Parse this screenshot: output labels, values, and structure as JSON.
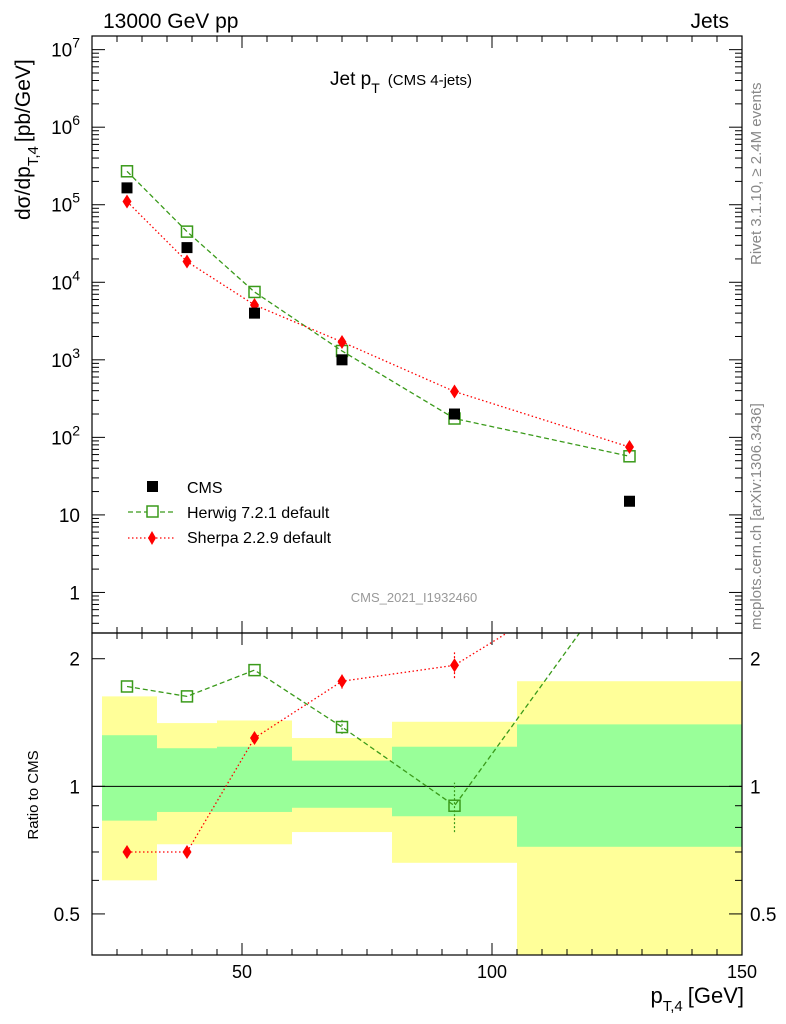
{
  "header": {
    "left": "13000 GeV pp",
    "right": "Jets"
  },
  "side_labels": {
    "rivet": "Rivet 3.1.10, ≥ 2.4M events",
    "mcplots": "mcplots.cern.ch [arXiv:1306.3436]"
  },
  "main_plot": {
    "title_main": "Jet p",
    "title_sub": "T",
    "title_note": "(CMS 4-jets)",
    "ylabel_main": "dσ/dp",
    "ylabel_sub": "T,4",
    "ylabel_unit": "[pb/GeV]",
    "watermark": "CMS_2021_I1932460"
  },
  "ratio_plot": {
    "ylabel": "Ratio to CMS"
  },
  "xlabel": {
    "main": "p",
    "sub": "T,4",
    "unit": "[GeV]"
  },
  "colors": {
    "cms": "#000000",
    "herwig": "#3a9a1a",
    "sherpa": "#ff0000",
    "band_inner": "#99ff99",
    "band_outer": "#ffff99"
  },
  "chart_data": [
    {
      "type": "scatter",
      "xlim": [
        20,
        150
      ],
      "ylim": [
        0.3,
        15000000
      ],
      "yscale": "log",
      "y_tick_labels": [
        "1",
        "10",
        "10^2",
        "10^3",
        "10^4",
        "10^5",
        "10^6",
        "10^7"
      ],
      "legend_placement": "bottom-left",
      "series": [
        {
          "name": "CMS",
          "x": [
            27,
            39,
            52.5,
            70,
            92.5,
            127.5
          ],
          "y": [
            165000,
            28000,
            4000,
            1000,
            200,
            15
          ]
        },
        {
          "name": "Herwig 7.2.1 default",
          "x": [
            27,
            39,
            52.5,
            70,
            92.5,
            127.5
          ],
          "y": [
            270000,
            45000,
            7500,
            1300,
            175,
            57
          ]
        },
        {
          "name": "Sherpa 2.2.9 default",
          "x": [
            27,
            39,
            52.5,
            70,
            92.5,
            127.5
          ],
          "y": [
            110000,
            18500,
            5100,
            1700,
            390,
            75
          ]
        }
      ]
    },
    {
      "type": "scatter",
      "xlim": [
        20,
        150
      ],
      "ylim": [
        0.4,
        2.3
      ],
      "yscale": "log",
      "x_tick_labels": [
        "50",
        "100",
        "150"
      ],
      "y_tick_labels": [
        "0.5",
        "1",
        "2"
      ],
      "bands": {
        "bins": [
          [
            22,
            33
          ],
          [
            33,
            45
          ],
          [
            45,
            60
          ],
          [
            60,
            80
          ],
          [
            80,
            105
          ],
          [
            105,
            150
          ]
        ],
        "inner": [
          [
            0.83,
            1.32
          ],
          [
            0.87,
            1.23
          ],
          [
            0.87,
            1.24
          ],
          [
            0.89,
            1.15
          ],
          [
            0.85,
            1.24
          ],
          [
            0.72,
            1.4
          ]
        ],
        "outer": [
          [
            0.6,
            1.63
          ],
          [
            0.73,
            1.41
          ],
          [
            0.73,
            1.43
          ],
          [
            0.78,
            1.3
          ],
          [
            0.66,
            1.42
          ],
          [
            0.4,
            1.77
          ]
        ]
      },
      "series": [
        {
          "name": "Herwig 7.2.1 default",
          "x": [
            27,
            39,
            52.5,
            70,
            92.5,
            117.5
          ],
          "y": [
            1.72,
            1.63,
            1.88,
            1.38,
            0.9,
            2.3
          ]
        },
        {
          "name": "Sherpa 2.2.9 default",
          "x": [
            27,
            39,
            52.5,
            70,
            92.5,
            103
          ],
          "y": [
            0.7,
            0.7,
            1.3,
            1.77,
            1.93,
            2.3
          ]
        }
      ]
    }
  ]
}
